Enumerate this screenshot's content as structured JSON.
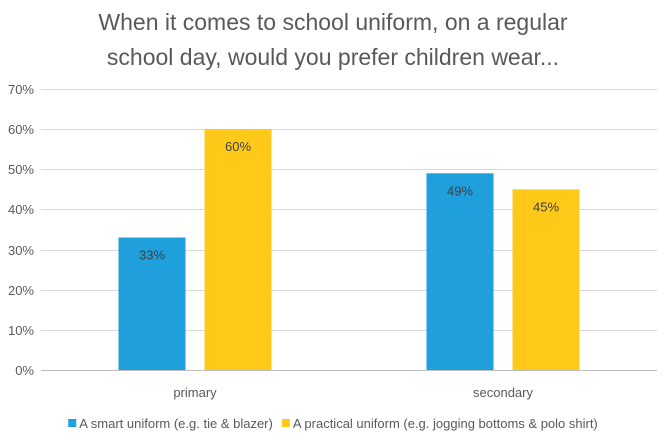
{
  "chart_data": {
    "type": "bar",
    "title_lines": [
      "When it comes to school uniform, on a regular",
      "school day, would you prefer children wear..."
    ],
    "categories": [
      "primary",
      "secondary"
    ],
    "series": [
      {
        "name": "A smart uniform (e.g. tie & blazer)",
        "color": "#1f9fdc",
        "values": [
          33,
          49
        ],
        "data_labels": [
          "33%",
          "49%"
        ]
      },
      {
        "name": "A practical uniform (e.g. jogging bottoms & polo shirt)",
        "color": "#ffc91a",
        "values": [
          60,
          45
        ],
        "data_labels": [
          "60%",
          "45%"
        ]
      }
    ],
    "ylim": [
      0,
      70
    ],
    "y_ticks": [
      0,
      10,
      20,
      30,
      40,
      50,
      60,
      70
    ],
    "y_tick_labels": [
      "0%",
      "10%",
      "20%",
      "30%",
      "40%",
      "50%",
      "60%",
      "70%"
    ],
    "grid": true,
    "legend_position": "bottom",
    "xlabel": "",
    "ylabel": ""
  }
}
